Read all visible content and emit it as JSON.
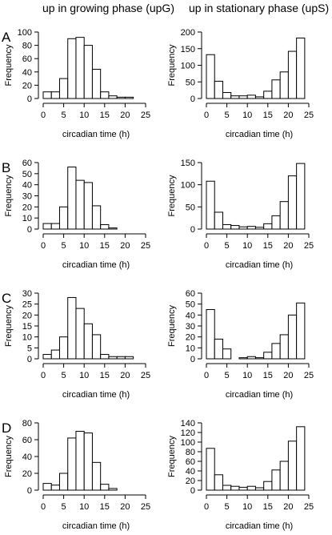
{
  "column_titles": [
    "up in growing phase (upG)",
    "up in stationary phase (upS)"
  ],
  "chart_data": [
    {
      "panel": "A",
      "type": "bar",
      "histogram": true,
      "title": "",
      "xlabel": "circadian time (h)",
      "ylabel": "Frequency",
      "bin_width": 2,
      "bin_starts": [
        0,
        2,
        4,
        6,
        8,
        10,
        12,
        14,
        16,
        18,
        20
      ],
      "values": [
        10,
        10,
        30,
        90,
        92,
        80,
        44,
        10,
        4,
        2,
        2
      ],
      "xlim": [
        0,
        25
      ],
      "xticks": [
        0,
        5,
        10,
        15,
        20,
        25
      ],
      "ylim": [
        0,
        100
      ],
      "yticks": [
        0,
        20,
        40,
        60,
        80,
        100
      ]
    },
    {
      "panel": "A",
      "type": "bar",
      "histogram": true,
      "title": "",
      "xlabel": "circadian time (h)",
      "ylabel": "Frequency",
      "bin_width": 2,
      "bin_starts": [
        0,
        2,
        4,
        6,
        8,
        10,
        12,
        14,
        16,
        18,
        20,
        22
      ],
      "values": [
        132,
        52,
        18,
        8,
        8,
        10,
        5,
        22,
        56,
        80,
        142,
        182
      ],
      "xlim": [
        0,
        25
      ],
      "xticks": [
        0,
        5,
        10,
        15,
        20,
        25
      ],
      "ylim": [
        0,
        200
      ],
      "yticks": [
        0,
        50,
        100,
        150,
        200
      ]
    },
    {
      "panel": "B",
      "type": "bar",
      "histogram": true,
      "title": "",
      "xlabel": "circadian time (h)",
      "ylabel": "Frequency",
      "bin_width": 2,
      "bin_starts": [
        0,
        2,
        4,
        6,
        8,
        10,
        12,
        14,
        16
      ],
      "values": [
        5,
        5,
        20,
        56,
        44,
        42,
        21,
        4,
        1
      ],
      "xlim": [
        0,
        25
      ],
      "xticks": [
        0,
        5,
        10,
        15,
        20,
        25
      ],
      "ylim": [
        0,
        60
      ],
      "yticks": [
        0,
        10,
        20,
        30,
        40,
        50,
        60
      ]
    },
    {
      "panel": "B",
      "type": "bar",
      "histogram": true,
      "title": "",
      "xlabel": "circadian time (h)",
      "ylabel": "Frequency",
      "bin_width": 2,
      "bin_starts": [
        0,
        2,
        4,
        6,
        8,
        10,
        12,
        14,
        16,
        18,
        20,
        22
      ],
      "values": [
        108,
        38,
        10,
        8,
        5,
        6,
        4,
        12,
        30,
        62,
        120,
        148
      ],
      "xlim": [
        0,
        25
      ],
      "xticks": [
        0,
        5,
        10,
        15,
        20,
        25
      ],
      "ylim": [
        0,
        150
      ],
      "yticks": [
        0,
        50,
        100,
        150
      ]
    },
    {
      "panel": "C",
      "type": "bar",
      "histogram": true,
      "title": "",
      "xlabel": "circadian time (h)",
      "ylabel": "Frequency",
      "bin_width": 2,
      "bin_starts": [
        0,
        2,
        4,
        6,
        8,
        10,
        12,
        14,
        16,
        18,
        20
      ],
      "values": [
        2,
        4,
        10,
        28,
        23,
        16,
        11,
        2,
        1,
        1,
        1
      ],
      "xlim": [
        0,
        25
      ],
      "xticks": [
        0,
        5,
        10,
        15,
        20,
        25
      ],
      "ylim": [
        0,
        30
      ],
      "yticks": [
        0,
        5,
        10,
        15,
        20,
        25,
        30
      ]
    },
    {
      "panel": "C",
      "type": "bar",
      "histogram": true,
      "title": "",
      "xlabel": "circadian time (h)",
      "ylabel": "Frequency",
      "bin_width": 2,
      "bin_starts": [
        0,
        2,
        4,
        6,
        8,
        10,
        12,
        14,
        16,
        18,
        20,
        22
      ],
      "values": [
        45,
        18,
        9,
        0,
        1,
        2,
        1,
        6,
        14,
        22,
        40,
        51
      ],
      "xlim": [
        0,
        25
      ],
      "xticks": [
        0,
        5,
        10,
        15,
        20,
        25
      ],
      "ylim": [
        0,
        60
      ],
      "yticks": [
        0,
        10,
        20,
        30,
        40,
        50,
        60
      ]
    },
    {
      "panel": "D",
      "type": "bar",
      "histogram": true,
      "title": "",
      "xlabel": "circadian time (h)",
      "ylabel": "Frequency",
      "bin_width": 2,
      "bin_starts": [
        0,
        2,
        4,
        6,
        8,
        10,
        12,
        14,
        16
      ],
      "values": [
        8,
        6,
        20,
        62,
        70,
        68,
        33,
        7,
        2
      ],
      "xlim": [
        0,
        25
      ],
      "xticks": [
        0,
        5,
        10,
        15,
        20,
        25
      ],
      "ylim": [
        0,
        80
      ],
      "yticks": [
        0,
        20,
        40,
        60,
        80
      ]
    },
    {
      "panel": "D",
      "type": "bar",
      "histogram": true,
      "title": "",
      "xlabel": "circadian time (h)",
      "ylabel": "Frequency",
      "bin_width": 2,
      "bin_starts": [
        0,
        2,
        4,
        6,
        8,
        10,
        12,
        14,
        16,
        18,
        20,
        22
      ],
      "values": [
        87,
        32,
        10,
        8,
        6,
        8,
        5,
        18,
        42,
        60,
        102,
        132
      ],
      "xlim": [
        0,
        25
      ],
      "xticks": [
        0,
        5,
        10,
        15,
        20,
        25
      ],
      "ylim": [
        0,
        140
      ],
      "yticks": [
        0,
        20,
        40,
        60,
        80,
        100,
        120,
        140
      ]
    }
  ]
}
